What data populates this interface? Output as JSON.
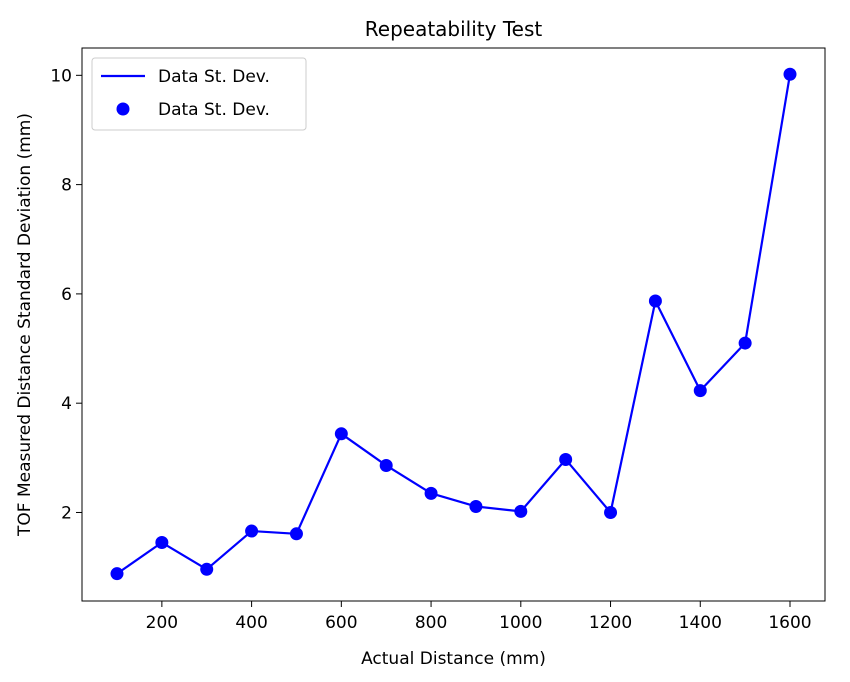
{
  "chart_data": {
    "type": "line",
    "title": "Repeatability Test",
    "xlabel": "Actual Distance (mm)",
    "ylabel": "TOF Measured Distance Standard Deviation (mm)",
    "x": [
      100,
      200,
      300,
      400,
      500,
      600,
      700,
      800,
      900,
      1000,
      1100,
      1200,
      1300,
      1400,
      1500,
      1600
    ],
    "series": [
      {
        "name": "Data St. Dev.",
        "style": "line",
        "color": "#0000ff",
        "values": [
          0.88,
          1.45,
          0.96,
          1.66,
          1.61,
          3.44,
          2.86,
          2.35,
          2.11,
          2.02,
          2.97,
          2.0,
          5.87,
          4.23,
          5.1,
          10.02
        ]
      },
      {
        "name": "Data St. Dev.",
        "style": "markers",
        "color": "#0000ff",
        "values": [
          0.88,
          1.45,
          0.96,
          1.66,
          1.61,
          3.44,
          2.86,
          2.35,
          2.11,
          2.02,
          2.97,
          2.0,
          5.87,
          4.23,
          5.1,
          10.02
        ]
      }
    ],
    "xlim": [
      22,
      1678
    ],
    "ylim": [
      0.38,
      10.5
    ],
    "xticks": [
      200,
      400,
      600,
      800,
      1000,
      1200,
      1400,
      1600
    ],
    "yticks": [
      2,
      4,
      6,
      8,
      10
    ],
    "grid": false,
    "legend": "top-left"
  }
}
